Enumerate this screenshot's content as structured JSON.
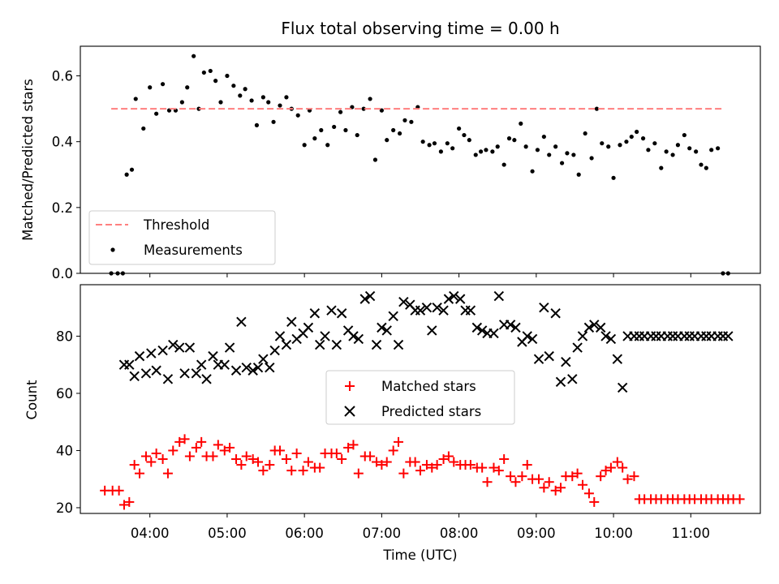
{
  "figure": {
    "title": "Flux total observing time = 0.00 h",
    "xlabel": "Time (UTC)"
  },
  "colors": {
    "threshold": "#ff7f7f",
    "measurements": "#000000",
    "matched": "#ff0000",
    "predicted": "#000000"
  },
  "chart_data": [
    {
      "type": "scatter",
      "ylabel": "Matched/Predicted stars",
      "xlim_hours": [
        3.1,
        11.9
      ],
      "ylim": [
        0,
        0.69
      ],
      "yticks": [
        0.0,
        0.2,
        0.4,
        0.6
      ],
      "ytick_labels": [
        "0.0",
        "0.2",
        "0.4",
        "0.6"
      ],
      "legend": {
        "placement": "lower-left",
        "entries": [
          "Threshold",
          "Measurements"
        ]
      },
      "threshold": {
        "name": "Threshold",
        "x": [
          "03:30",
          "11:25"
        ],
        "y": 0.5
      },
      "series": [
        {
          "name": "Measurements",
          "marker": "dot",
          "x": [
            "03:30",
            "03:35",
            "03:39",
            "03:42",
            "03:46",
            "03:49",
            "03:55",
            "04:00",
            "04:05",
            "04:10",
            "04:15",
            "04:20",
            "04:25",
            "04:29",
            "04:34",
            "04:38",
            "04:42",
            "04:47",
            "04:51",
            "04:55",
            "05:00",
            "05:05",
            "05:10",
            "05:14",
            "05:19",
            "05:23",
            "05:28",
            "05:32",
            "05:36",
            "05:41",
            "05:46",
            "05:50",
            "05:55",
            "06:00",
            "06:04",
            "06:08",
            "06:13",
            "06:18",
            "06:23",
            "06:28",
            "06:32",
            "06:37",
            "06:41",
            "06:46",
            "06:51",
            "06:55",
            "07:00",
            "07:04",
            "07:09",
            "07:14",
            "07:18",
            "07:23",
            "07:28",
            "07:32",
            "07:37",
            "07:41",
            "07:46",
            "07:51",
            "07:55",
            "08:00",
            "08:04",
            "08:08",
            "08:13",
            "08:17",
            "08:21",
            "08:26",
            "08:30",
            "08:35",
            "08:39",
            "08:43",
            "08:48",
            "08:52",
            "08:57",
            "09:01",
            "09:06",
            "09:10",
            "09:15",
            "09:20",
            "09:24",
            "09:29",
            "09:33",
            "09:38",
            "09:43",
            "09:47",
            "09:51",
            "09:56",
            "10:00",
            "10:05",
            "10:10",
            "10:14",
            "10:18",
            "10:23",
            "10:27",
            "10:32",
            "10:37",
            "10:41",
            "10:46",
            "10:50",
            "10:55",
            "10:59",
            "11:04",
            "11:08",
            "11:12",
            "11:16",
            "11:21",
            "11:25",
            "11:29"
          ],
          "y": [
            0,
            0,
            0,
            0.3,
            0.315,
            0.53,
            0.44,
            0.565,
            0.485,
            0.575,
            0.495,
            0.495,
            0.52,
            0.565,
            0.66,
            0.5,
            0.61,
            0.615,
            0.585,
            0.52,
            0.6,
            0.57,
            0.54,
            0.56,
            0.525,
            0.45,
            0.535,
            0.52,
            0.46,
            0.51,
            0.535,
            0.5,
            0.48,
            0.39,
            0.495,
            0.41,
            0.435,
            0.39,
            0.445,
            0.49,
            0.435,
            0.505,
            0.42,
            0.5,
            0.53,
            0.345,
            0.495,
            0.405,
            0.435,
            0.425,
            0.465,
            0.46,
            0.505,
            0.4,
            0.39,
            0.395,
            0.37,
            0.395,
            0.38,
            0.44,
            0.42,
            0.405,
            0.36,
            0.37,
            0.375,
            0.37,
            0.385,
            0.33,
            0.41,
            0.405,
            0.455,
            0.385,
            0.31,
            0.375,
            0.415,
            0.36,
            0.385,
            0.335,
            0.365,
            0.36,
            0.3,
            0.425,
            0.35,
            0.5,
            0.395,
            0.385,
            0.29,
            0.39,
            0.4,
            0.415,
            0.43,
            0.41,
            0.375,
            0.395,
            0.32,
            0.37,
            0.36,
            0.39,
            0.42,
            0.38,
            0.37,
            0.33,
            0.32,
            0.375,
            0.38,
            0,
            0
          ]
        }
      ]
    },
    {
      "type": "scatter",
      "ylabel": "Count",
      "xlim_hours": [
        3.1,
        11.9
      ],
      "ylim": [
        18,
        98
      ],
      "yticks": [
        20,
        40,
        60,
        80
      ],
      "ytick_labels": [
        "20",
        "40",
        "60",
        "80"
      ],
      "xticks_hours": [
        4,
        5,
        6,
        7,
        8,
        9,
        10,
        11
      ],
      "xtick_labels": [
        "04:00",
        "05:00",
        "06:00",
        "07:00",
        "08:00",
        "09:00",
        "10:00",
        "11:00"
      ],
      "legend": {
        "placement": "center",
        "entries": [
          "Matched stars",
          "Predicted stars"
        ]
      },
      "series": [
        {
          "name": "Matched stars",
          "marker": "plus",
          "x": [
            "03:25",
            "03:31",
            "03:36",
            "03:40",
            "03:44",
            "03:48",
            "03:52",
            "03:57",
            "04:01",
            "04:05",
            "04:10",
            "04:14",
            "04:18",
            "04:23",
            "04:27",
            "04:31",
            "04:36",
            "04:40",
            "04:44",
            "04:49",
            "04:53",
            "04:58",
            "05:02",
            "05:07",
            "05:11",
            "05:15",
            "05:20",
            "05:24",
            "05:28",
            "05:33",
            "05:37",
            "05:41",
            "05:46",
            "05:50",
            "05:54",
            "05:59",
            "06:03",
            "06:08",
            "06:12",
            "06:16",
            "06:21",
            "06:25",
            "06:29",
            "06:34",
            "06:38",
            "06:42",
            "06:47",
            "06:51",
            "06:56",
            "07:00",
            "07:04",
            "07:09",
            "07:13",
            "07:17",
            "07:22",
            "07:26",
            "07:30",
            "07:35",
            "07:39",
            "07:43",
            "07:48",
            "07:52",
            "07:56",
            "08:01",
            "08:05",
            "08:09",
            "08:14",
            "08:18",
            "08:22",
            "08:27",
            "08:31",
            "08:35",
            "08:40",
            "08:44",
            "08:49",
            "08:53",
            "08:57",
            "09:02",
            "09:06",
            "09:10",
            "09:15",
            "09:19",
            "09:23",
            "09:28",
            "09:32",
            "09:36",
            "09:41",
            "09:45",
            "09:50",
            "09:54",
            "09:58",
            "10:03",
            "10:07",
            "10:11",
            "10:16",
            "10:20",
            "10:24",
            "10:29",
            "10:33",
            "10:37",
            "10:42",
            "10:46",
            "10:50",
            "10:55",
            "10:59",
            "11:03",
            "11:08",
            "11:12",
            "11:16",
            "11:21",
            "11:25",
            "11:29",
            "11:33",
            "11:38"
          ],
          "y": [
            26,
            26,
            26,
            21,
            22,
            35,
            32,
            38,
            36,
            39,
            37,
            32,
            40,
            43,
            44,
            38,
            41,
            43,
            38,
            38,
            42,
            40,
            41,
            37,
            35,
            38,
            37,
            36,
            33,
            35,
            40,
            40,
            37,
            33,
            39,
            33,
            36,
            34,
            34,
            39,
            39,
            39,
            37,
            41,
            42,
            32,
            38,
            38,
            36,
            35,
            36,
            40,
            43,
            32,
            36,
            36,
            33,
            35,
            34,
            35,
            37,
            38,
            36,
            35,
            35,
            35,
            34,
            34,
            29,
            34,
            33,
            37,
            31,
            29,
            31,
            35,
            30,
            30,
            27,
            29,
            26,
            27,
            31,
            31,
            32,
            28,
            25,
            22,
            31,
            33,
            34,
            36,
            34,
            30,
            31,
            23,
            23,
            23,
            23,
            23,
            23,
            23,
            23,
            23,
            23,
            23,
            23,
            23,
            23,
            23,
            23,
            23,
            23,
            23
          ]
        },
        {
          "name": "Predicted stars",
          "marker": "x",
          "x": [
            "03:40",
            "03:44",
            "03:48",
            "03:52",
            "03:57",
            "04:01",
            "04:05",
            "04:10",
            "04:14",
            "04:18",
            "04:23",
            "04:27",
            "04:31",
            "04:36",
            "04:40",
            "04:44",
            "04:49",
            "04:53",
            "04:58",
            "05:02",
            "05:07",
            "05:11",
            "05:15",
            "05:20",
            "05:24",
            "05:28",
            "05:33",
            "05:37",
            "05:41",
            "05:46",
            "05:50",
            "05:54",
            "05:59",
            "06:03",
            "06:08",
            "06:12",
            "06:16",
            "06:21",
            "06:25",
            "06:29",
            "06:34",
            "06:38",
            "06:42",
            "06:47",
            "06:51",
            "06:56",
            "07:00",
            "07:04",
            "07:09",
            "07:13",
            "07:17",
            "07:22",
            "07:26",
            "07:30",
            "07:35",
            "07:39",
            "07:43",
            "07:48",
            "07:52",
            "07:56",
            "08:01",
            "08:05",
            "08:09",
            "08:14",
            "08:18",
            "08:22",
            "08:27",
            "08:31",
            "08:35",
            "08:40",
            "08:44",
            "08:49",
            "08:53",
            "08:57",
            "09:02",
            "09:06",
            "09:10",
            "09:15",
            "09:19",
            "09:23",
            "09:28",
            "09:32",
            "09:36",
            "09:41",
            "09:45",
            "09:50",
            "09:54",
            "09:58",
            "10:03",
            "10:07",
            "10:11",
            "10:16",
            "10:20",
            "10:24",
            "10:29",
            "10:33",
            "10:37",
            "10:42",
            "10:46",
            "10:50",
            "10:55",
            "10:59",
            "11:03",
            "11:08",
            "11:12",
            "11:16",
            "11:21",
            "11:25",
            "11:29"
          ],
          "y": [
            70,
            70,
            66,
            73,
            67,
            74,
            68,
            75,
            65,
            77,
            76,
            67,
            76,
            67,
            70,
            65,
            73,
            70,
            70,
            76,
            68,
            85,
            69,
            68,
            69,
            72,
            69,
            75,
            80,
            77,
            85,
            79,
            81,
            83,
            88,
            77,
            80,
            89,
            77,
            88,
            82,
            80,
            79,
            93,
            94,
            77,
            83,
            82,
            87,
            77,
            92,
            91,
            89,
            89,
            90,
            82,
            90,
            89,
            93,
            94,
            93,
            89,
            89,
            83,
            82,
            81,
            81,
            94,
            84,
            84,
            83,
            78,
            80,
            79,
            72,
            90,
            73,
            88,
            64,
            71,
            65,
            76,
            80,
            83,
            84,
            83,
            80,
            79,
            72,
            62,
            80,
            80,
            80,
            80,
            80,
            80,
            80,
            80,
            80,
            80,
            80,
            80,
            80,
            80,
            80,
            80,
            80,
            80,
            80
          ]
        }
      ]
    }
  ]
}
